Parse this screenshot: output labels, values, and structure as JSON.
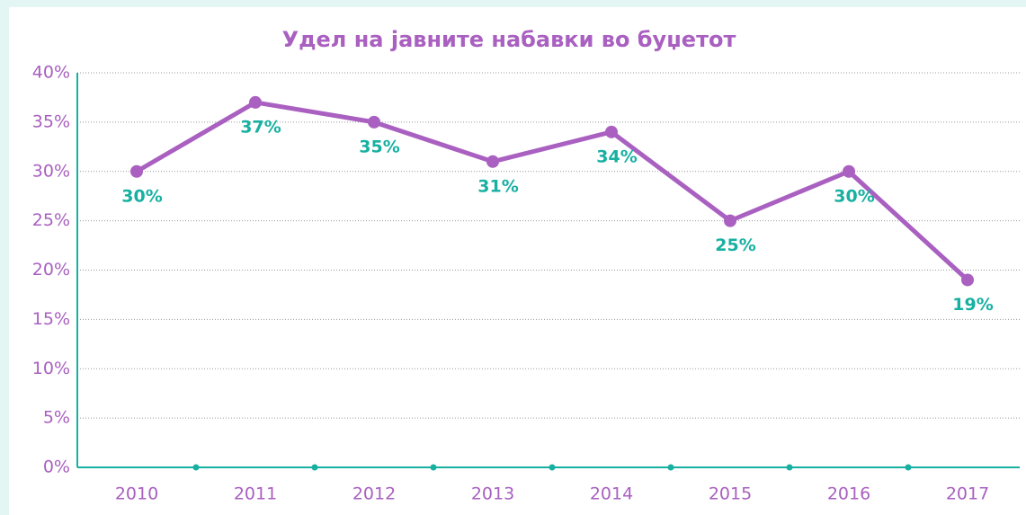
{
  "chart_data": {
    "type": "line",
    "title": "Удел на јавните набавки во буџетот",
    "categories": [
      "2010",
      "2011",
      "2012",
      "2013",
      "2014",
      "2015",
      "2016",
      "2017"
    ],
    "values": [
      30,
      37,
      35,
      31,
      34,
      25,
      30,
      19
    ],
    "value_labels": [
      "30%",
      "37%",
      "35%",
      "31%",
      "34%",
      "25%",
      "30%",
      "19%"
    ],
    "color": "#a960c0",
    "label_color": "#17b0a1",
    "axis_color": "#17b0a1",
    "ylim": [
      0,
      40
    ],
    "yticks": [
      {
        "value": 0,
        "label": "0%"
      },
      {
        "value": 5,
        "label": "5%"
      },
      {
        "value": 10,
        "label": "10%"
      },
      {
        "value": 15,
        "label": "15%"
      },
      {
        "value": 20,
        "label": "20%"
      },
      {
        "value": 25,
        "label": "25%"
      },
      {
        "value": 30,
        "label": "30%"
      },
      {
        "value": 35,
        "label": "35%"
      },
      {
        "value": 40,
        "label": "40%"
      }
    ],
    "grid": true
  }
}
